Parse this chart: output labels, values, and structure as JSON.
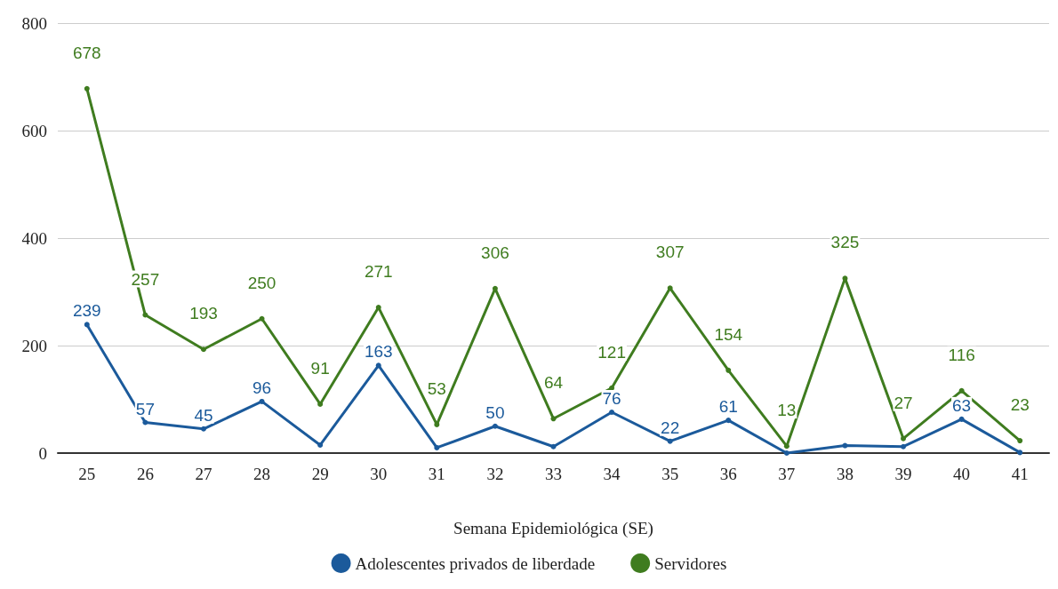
{
  "chart_data": {
    "type": "line",
    "xlabel": "Semana Epidemiológica (SE)",
    "categories": [
      "25",
      "26",
      "27",
      "28",
      "29",
      "30",
      "31",
      "32",
      "33",
      "34",
      "35",
      "36",
      "37",
      "38",
      "39",
      "40",
      "41"
    ],
    "ylim": [
      0,
      800
    ],
    "yticks": [
      0,
      200,
      400,
      600,
      800
    ],
    "grid": "y",
    "legend": "bottom",
    "marker": "circle",
    "line_style": "solid",
    "series": [
      {
        "name": "Adolescentes privados de liberdade",
        "color": "#1b5a9b",
        "values": [
          239,
          57,
          45,
          96,
          15,
          163,
          10,
          50,
          12,
          76,
          22,
          61,
          0,
          14,
          12,
          63,
          1
        ],
        "value_labels": [
          "239",
          "57",
          "45",
          "96",
          null,
          "163",
          null,
          "50",
          null,
          "76",
          "22",
          "61",
          null,
          null,
          null,
          "63",
          null
        ]
      },
      {
        "name": "Servidores",
        "color": "#3f7c1f",
        "values": [
          678,
          257,
          193,
          250,
          91,
          271,
          53,
          306,
          64,
          121,
          307,
          154,
          13,
          325,
          27,
          116,
          23
        ],
        "value_labels": [
          "678",
          "257",
          "193",
          "250",
          "91",
          "271",
          "53",
          "306",
          "64",
          "121",
          "307",
          "154",
          "13",
          "325",
          "27",
          "116",
          "23"
        ]
      }
    ]
  }
}
